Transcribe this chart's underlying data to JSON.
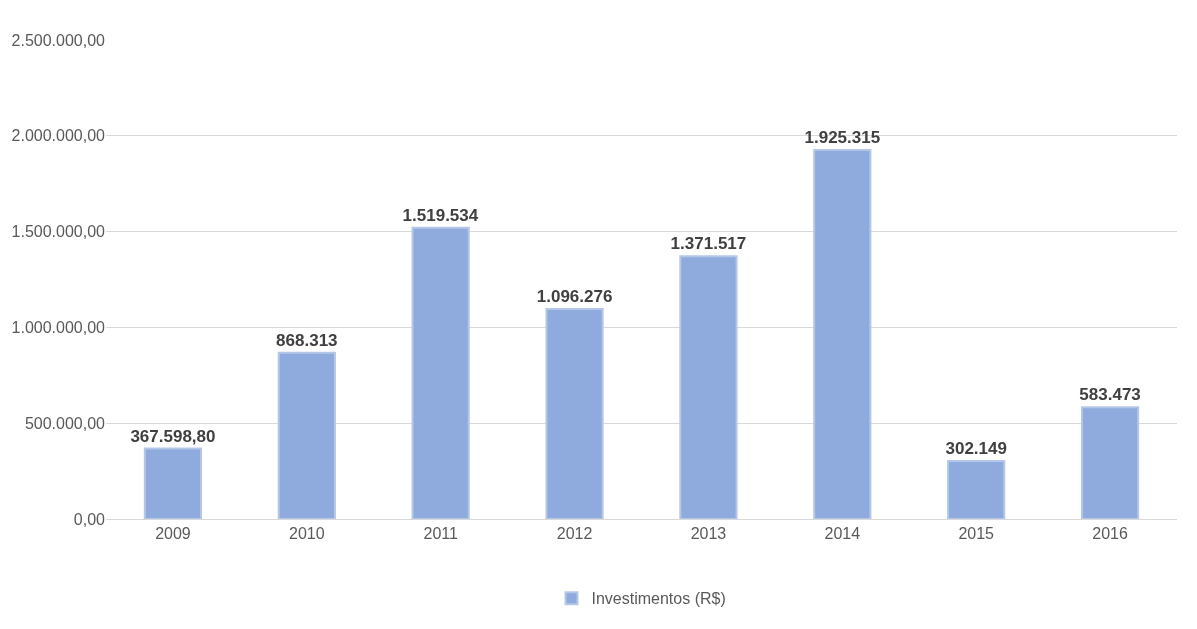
{
  "chart_data": {
    "type": "bar",
    "categories": [
      "2009",
      "2010",
      "2011",
      "2012",
      "2013",
      "2014",
      "2015",
      "2016"
    ],
    "series": [
      {
        "name": "Investimentos (R$)",
        "color": "#8faadc",
        "values": [
          367598.8,
          868313,
          1519534,
          1096276,
          1371517,
          1925315,
          302149,
          583473
        ],
        "value_labels": [
          "367.598,80",
          "868.313",
          "1.519.534",
          "1.096.276",
          "1.371.517",
          "1.925.315",
          "302.149",
          "583.473"
        ]
      }
    ],
    "ylim": [
      0,
      2500000
    ],
    "yticks": [
      {
        "value": 0,
        "label": "0,00"
      },
      {
        "value": 500000,
        "label": "500.000,00"
      },
      {
        "value": 1000000,
        "label": "1.000.000,00"
      },
      {
        "value": 1500000,
        "label": "1.500.000,00"
      },
      {
        "value": 2000000,
        "label": "2.000.000,00"
      },
      {
        "value": 2500000,
        "label": "2.500.000,00"
      }
    ],
    "grid": "y",
    "legend": "bottom"
  }
}
